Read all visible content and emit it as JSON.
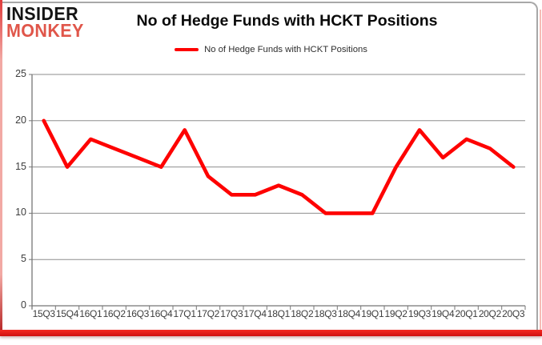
{
  "brand": {
    "line1": "INSIDER",
    "line2": "MONKEY"
  },
  "header": {
    "title": "No of Hedge Funds with HCKT Positions"
  },
  "legend": {
    "label": "No of Hedge Funds with HCKT Positions"
  },
  "chart_data": {
    "type": "line",
    "title": "No of Hedge Funds with HCKT Positions",
    "categories": [
      "15Q3",
      "15Q4",
      "16Q1",
      "16Q2",
      "16Q3",
      "16Q4",
      "17Q1",
      "17Q2",
      "17Q3",
      "17Q4",
      "18Q1",
      "18Q2",
      "18Q3",
      "18Q4",
      "19Q1",
      "19Q2",
      "19Q3",
      "19Q4",
      "20Q1",
      "20Q2",
      "20Q3"
    ],
    "series": [
      {
        "name": "No of Hedge Funds with HCKT Positions",
        "color": "#fe0100",
        "values": [
          20,
          15,
          18,
          17,
          16,
          15,
          19,
          14,
          12,
          12,
          13,
          12,
          10,
          10,
          10,
          15,
          19,
          16,
          18,
          17,
          15
        ]
      }
    ],
    "ylim": [
      0,
      25
    ],
    "yticks": [
      25,
      20,
      15,
      10,
      5,
      0
    ],
    "grid": true,
    "legend_position": "top"
  },
  "colors": {
    "line_red": "#fe0100",
    "grid": "#8e8e8e",
    "axis": "#767676",
    "tick_label": "#3d3d3d",
    "brand_black": "#141414",
    "brand_red": "#e0564a",
    "frame_gray": "#a8a8a8",
    "bottom_bar_red": "#e31414",
    "side_pink": "#f6bcb6"
  }
}
